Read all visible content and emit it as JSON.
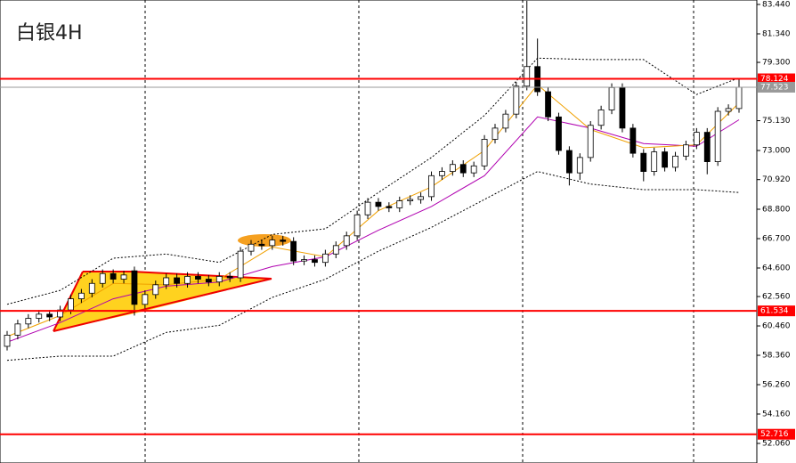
{
  "chart_data": {
    "type": "candlestick",
    "title": "白银4H",
    "ylim": [
      50.66,
      83.758
    ],
    "yticks": [
      {
        "value": 83.44,
        "label": "83.440"
      },
      {
        "value": 81.34,
        "label": "81.340"
      },
      {
        "value": 79.3,
        "label": "79.300"
      },
      {
        "value": 75.13,
        "label": "75.130"
      },
      {
        "value": 73,
        "label": "73.000"
      },
      {
        "value": 70.92,
        "label": "70.920"
      },
      {
        "value": 68.8,
        "label": "68.800"
      },
      {
        "value": 66.7,
        "label": "66.700"
      },
      {
        "value": 64.6,
        "label": "64.600"
      },
      {
        "value": 62.56,
        "label": "62.560"
      },
      {
        "value": 60.46,
        "label": "60.460"
      },
      {
        "value": 58.36,
        "label": "58.360"
      },
      {
        "value": 56.26,
        "label": "56.260"
      },
      {
        "value": 54.16,
        "label": "54.160"
      },
      {
        "value": 52.06,
        "label": "52.060"
      }
    ],
    "open": [
      59.0,
      59.8,
      60.6,
      61.0,
      61.3,
      61.1,
      61.6,
      62.4,
      62.8,
      63.5,
      64.2,
      63.8,
      64.4,
      62.0,
      62.7,
      63.4,
      63.9,
      63.5,
      64.0,
      63.8,
      63.6,
      64.0,
      63.9,
      65.8,
      66.3,
      66.2,
      66.6,
      66.5,
      65.1,
      65.2,
      65.0,
      65.6,
      66.2,
      66.9,
      68.4,
      69.3,
      69.0,
      68.9,
      69.4,
      69.5,
      69.7,
      71.2,
      71.5,
      72.0,
      71.4,
      71.9,
      73.8,
      74.6,
      75.6,
      77.6,
      79.0,
      77.2,
      75.4,
      73.0,
      71.4,
      72.5,
      74.8,
      75.9,
      77.5,
      74.6,
      72.8,
      71.5,
      72.9,
      71.8,
      72.6,
      73.4,
      74.3,
      72.2,
      75.8,
      76.0
    ],
    "high": [
      60.1,
      60.9,
      61.3,
      61.6,
      61.6,
      61.9,
      62.7,
      63.1,
      63.8,
      64.5,
      64.5,
      64.4,
      64.7,
      63.0,
      63.7,
      64.2,
      64.2,
      64.3,
      64.3,
      64.1,
      64.3,
      64.3,
      66.1,
      66.6,
      66.6,
      66.9,
      66.9,
      66.8,
      65.5,
      65.5,
      65.9,
      66.5,
      67.2,
      68.7,
      69.6,
      69.6,
      69.3,
      69.7,
      69.8,
      70.0,
      71.5,
      71.8,
      72.3,
      72.3,
      72.2,
      74.1,
      74.9,
      75.9,
      77.9,
      83.7,
      81.0,
      77.5,
      75.7,
      73.3,
      72.8,
      75.1,
      76.2,
      77.8,
      77.8,
      74.9,
      73.1,
      73.2,
      73.2,
      72.9,
      73.7,
      74.6,
      74.6,
      76.1,
      76.3,
      78.1
    ],
    "low": [
      58.7,
      59.5,
      60.3,
      60.7,
      60.8,
      60.8,
      61.3,
      62.1,
      62.5,
      63.2,
      63.5,
      63.5,
      61.2,
      61.7,
      62.4,
      63.1,
      63.2,
      63.2,
      63.5,
      63.3,
      63.3,
      63.6,
      63.6,
      65.5,
      65.9,
      65.9,
      66.2,
      64.8,
      64.8,
      64.7,
      64.7,
      65.3,
      65.9,
      66.6,
      68.1,
      68.7,
      68.6,
      68.6,
      69.1,
      69.2,
      69.4,
      70.9,
      71.2,
      71.1,
      71.1,
      71.6,
      73.5,
      74.3,
      75.3,
      77.3,
      76.9,
      75.1,
      72.7,
      70.5,
      70.9,
      72.2,
      74.5,
      75.6,
      74.3,
      72.5,
      70.8,
      71.2,
      71.5,
      71.5,
      72.3,
      73.1,
      71.3,
      71.9,
      75.5,
      75.7
    ],
    "close": [
      59.8,
      60.6,
      61.0,
      61.3,
      61.1,
      61.6,
      62.4,
      62.8,
      63.5,
      64.2,
      63.8,
      64.1,
      62.0,
      62.7,
      63.4,
      63.9,
      63.5,
      64.0,
      63.8,
      63.6,
      64.0,
      63.9,
      65.8,
      66.3,
      66.2,
      66.6,
      66.5,
      65.1,
      65.2,
      65.0,
      65.6,
      66.2,
      66.9,
      68.4,
      69.3,
      69.0,
      68.9,
      69.4,
      69.5,
      69.7,
      71.2,
      71.5,
      72.0,
      71.4,
      71.9,
      73.8,
      74.6,
      75.6,
      77.6,
      79.0,
      77.2,
      75.4,
      73.0,
      71.4,
      72.5,
      74.8,
      75.9,
      77.5,
      74.6,
      72.8,
      71.5,
      72.9,
      71.8,
      72.6,
      73.4,
      74.3,
      72.2,
      75.8,
      76.0,
      77.52
    ],
    "overlays": [
      {
        "color": "#000000",
        "dashed": true,
        "x": [
          0,
          5,
          10,
          15,
          20,
          25,
          30,
          35,
          40,
          45,
          50,
          55,
          60,
          65,
          69
        ],
        "values": [
          62.0,
          63.0,
          65.3,
          65.6,
          65.0,
          67.0,
          67.4,
          70.0,
          72.5,
          75.5,
          79.6,
          79.5,
          79.5,
          77.0,
          78.2
        ]
      },
      {
        "color": "#000000",
        "dashed": true,
        "x": [
          0,
          5,
          10,
          15,
          20,
          25,
          30,
          35,
          40,
          45,
          50,
          55,
          60,
          65,
          69
        ],
        "values": [
          58.0,
          58.3,
          58.3,
          60.0,
          60.5,
          62.5,
          63.8,
          65.8,
          67.5,
          69.5,
          71.5,
          70.6,
          70.2,
          70.2,
          70.0
        ]
      },
      {
        "color": "#b000b0",
        "dashed": false,
        "x": [
          0,
          5,
          10,
          15,
          20,
          25,
          30,
          35,
          40,
          45,
          50,
          55,
          60,
          65,
          69
        ],
        "values": [
          59.3,
          60.7,
          62.4,
          63.3,
          63.6,
          64.7,
          65.4,
          67.3,
          69.0,
          71.2,
          75.4,
          74.6,
          73.5,
          73.3,
          75.2
        ]
      },
      {
        "color": "#f0a000",
        "dashed": false,
        "x": [
          0,
          5,
          10,
          15,
          20,
          25,
          30,
          35,
          40,
          45,
          50,
          55,
          60,
          65,
          69
        ],
        "values": [
          59.7,
          61.2,
          63.5,
          63.4,
          63.8,
          66.1,
          65.4,
          68.7,
          70.4,
          73.0,
          77.7,
          74.5,
          73.2,
          73.4,
          76.4
        ]
      }
    ],
    "levels": [
      {
        "value": 78.124,
        "label": "78.124",
        "color": "#ff0000"
      },
      {
        "value": 61.534,
        "label": "61.534",
        "color": "#ff0000"
      },
      {
        "value": 52.716,
        "label": "52.716",
        "color": "#ff0000"
      }
    ],
    "current": {
      "value": 77.523,
      "label": "77.523",
      "color": "#999999"
    }
  }
}
